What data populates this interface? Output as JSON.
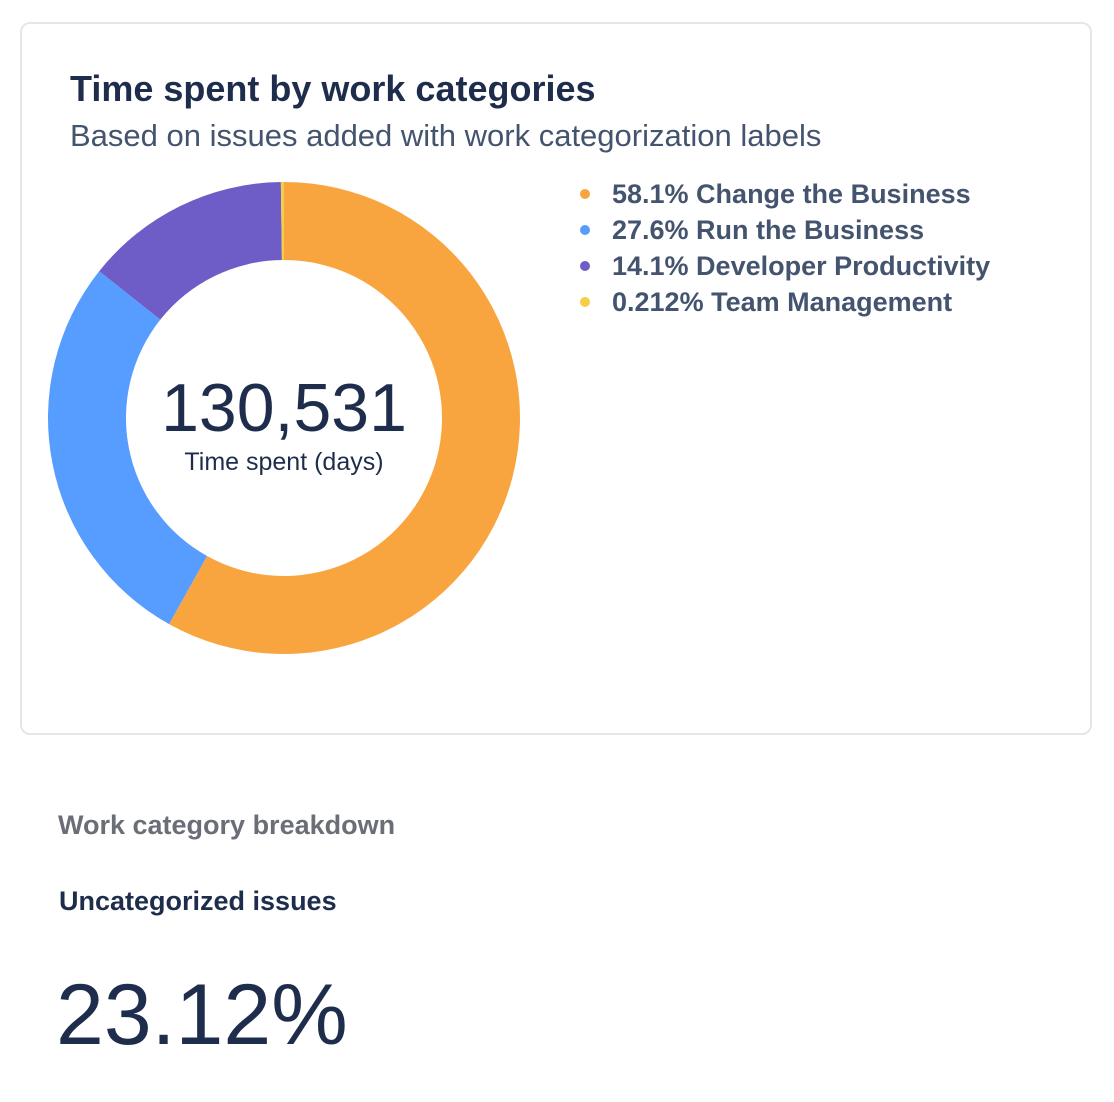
{
  "chart_data": {
    "type": "pie",
    "title": "Time spent by work categories",
    "subtitle": "Based on issues added with work categorization labels",
    "center_value": "130,531",
    "center_label": "Time spent (days)",
    "slices": [
      {
        "label": "Change the Business",
        "percent_label": "58.1%",
        "value": 58.1,
        "color": "#f9a53f"
      },
      {
        "label": "Run the Business",
        "percent_label": "27.6%",
        "value": 27.6,
        "color": "#579dff"
      },
      {
        "label": "Developer Productivity",
        "percent_label": "14.1%",
        "value": 14.1,
        "color": "#6e5dc6"
      },
      {
        "label": "Team Management",
        "percent_label": "0.212%",
        "value": 0.212,
        "color": "#f5cd47"
      }
    ],
    "legend_position": "right"
  },
  "breakdown": {
    "section_label": "Work category breakdown",
    "metric_label": "Uncategorized issues",
    "metric_value": "23.12%"
  }
}
